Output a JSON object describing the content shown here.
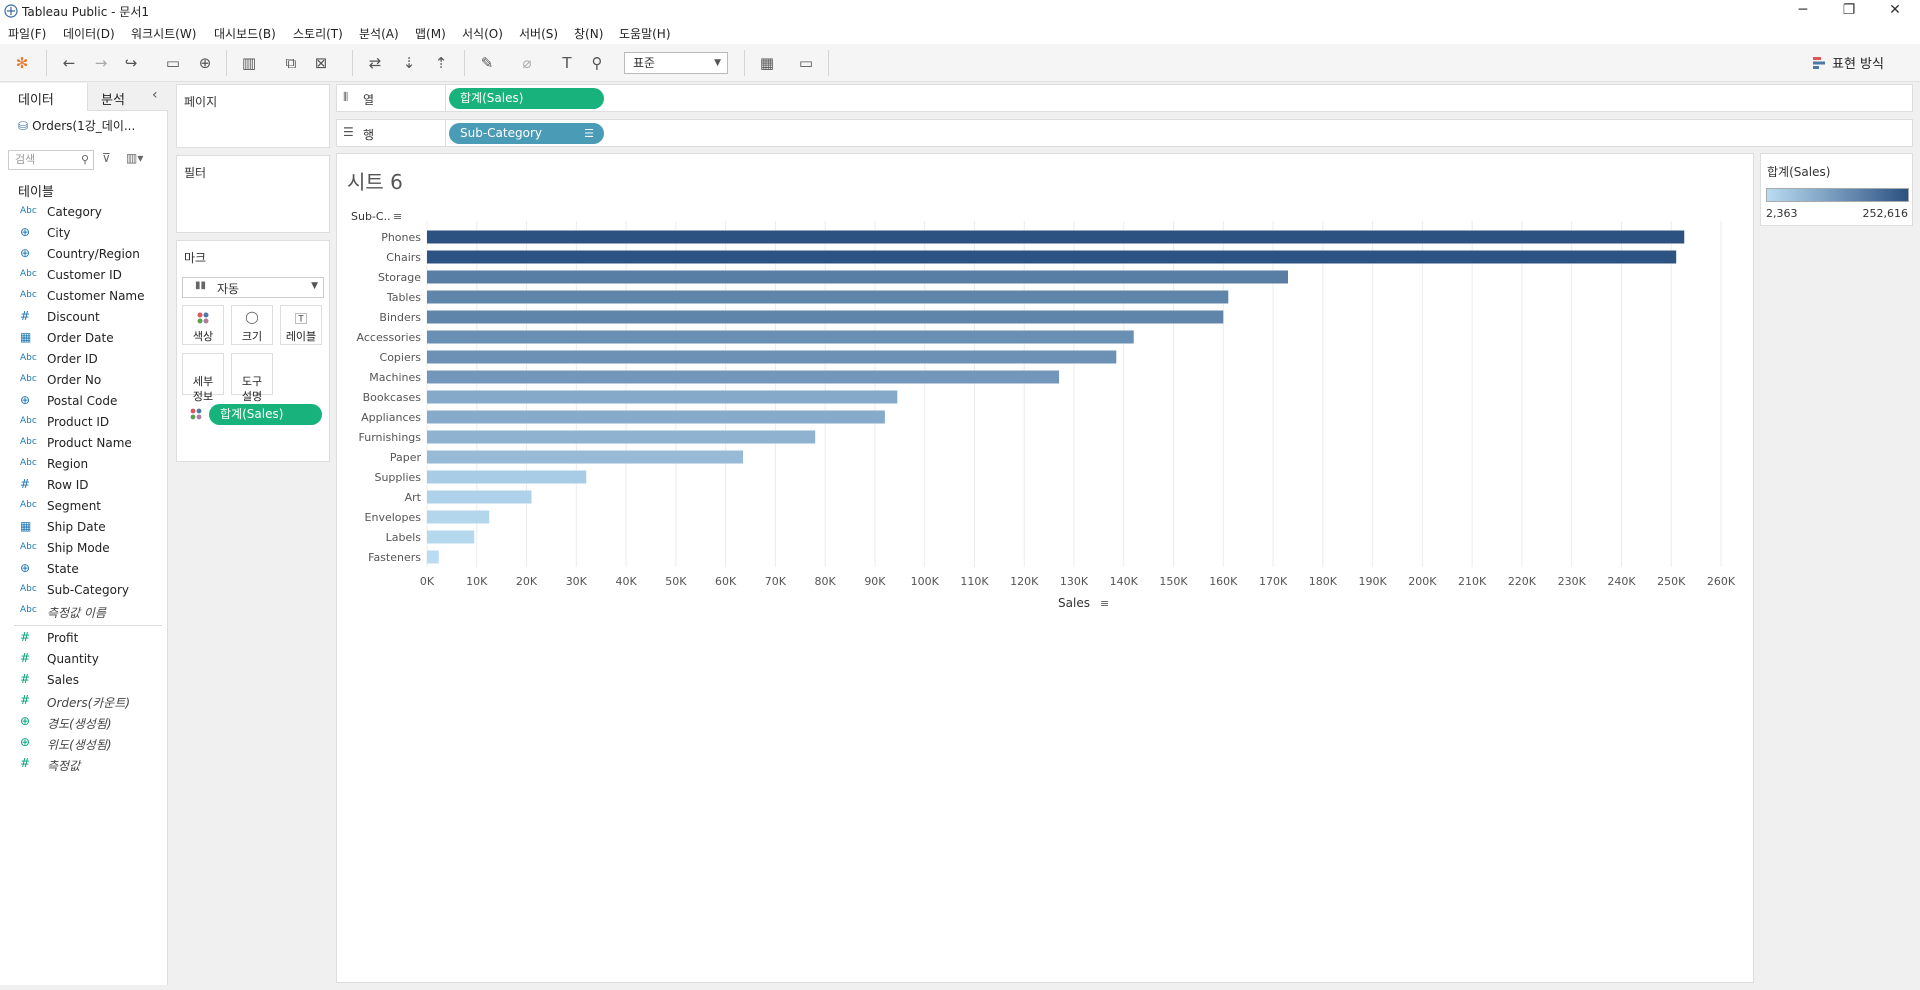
{
  "window": {
    "title": "Tableau Public - 문서1"
  },
  "menu": [
    "파일(F)",
    "데이터(D)",
    "워크시트(W)",
    "대시보드(B)",
    "스토리(T)",
    "분석(A)",
    "맵(M)",
    "서식(O)",
    "서버(S)",
    "창(N)",
    "도움말(H)"
  ],
  "toolbar": {
    "format_select": "표준",
    "show_me_label": "표현 방식"
  },
  "data_pane": {
    "tab_data": "데이터",
    "tab_analysis": "분석",
    "datasource": "Orders(1강_데이...",
    "search_placeholder": "검색",
    "tables_header": "테이블",
    "dimensions": [
      {
        "icon": "Abc",
        "name": "Category"
      },
      {
        "icon": "globe",
        "name": "City"
      },
      {
        "icon": "globe",
        "name": "Country/Region"
      },
      {
        "icon": "Abc",
        "name": "Customer ID"
      },
      {
        "icon": "Abc",
        "name": "Customer Name"
      },
      {
        "icon": "#",
        "name": "Discount"
      },
      {
        "icon": "date",
        "name": "Order Date"
      },
      {
        "icon": "Abc",
        "name": "Order ID"
      },
      {
        "icon": "Abc",
        "name": "Order No"
      },
      {
        "icon": "globe",
        "name": "Postal Code"
      },
      {
        "icon": "Abc",
        "name": "Product ID"
      },
      {
        "icon": "Abc",
        "name": "Product Name"
      },
      {
        "icon": "Abc",
        "name": "Region"
      },
      {
        "icon": "#",
        "name": "Row ID"
      },
      {
        "icon": "Abc",
        "name": "Segment"
      },
      {
        "icon": "date",
        "name": "Ship Date"
      },
      {
        "icon": "Abc",
        "name": "Ship Mode"
      },
      {
        "icon": "globe",
        "name": "State"
      },
      {
        "icon": "Abc",
        "name": "Sub-Category"
      },
      {
        "icon": "Abc",
        "name": "측정값 이름",
        "italic": true
      }
    ],
    "measures": [
      {
        "icon": "#",
        "name": "Profit"
      },
      {
        "icon": "#",
        "name": "Quantity"
      },
      {
        "icon": "#",
        "name": "Sales"
      },
      {
        "icon": "#",
        "name": "Orders(카운트)",
        "italic": true
      },
      {
        "icon": "globe",
        "name": "경도(생성됨)",
        "italic": true
      },
      {
        "icon": "globe",
        "name": "위도(생성됨)",
        "italic": true
      },
      {
        "icon": "#",
        "name": "측정값",
        "italic": true
      }
    ]
  },
  "cards": {
    "pages": "페이지",
    "filters": "필터",
    "marks": "마크",
    "mark_type": "자동",
    "mark_buttons": {
      "color": "색상",
      "size": "크기",
      "label": "레이블",
      "detail": "세부\n정보",
      "tooltip": "도구\n설명"
    },
    "marks_pill": "합계(Sales)"
  },
  "shelves": {
    "columns_label": "열",
    "rows_label": "행",
    "columns_pill": "합계(Sales)",
    "rows_pill": "Sub-Category"
  },
  "sheet": {
    "title": "시트 6"
  },
  "legend": {
    "title": "합계(Sales)",
    "min_label": "2,363",
    "max_label": "252,616"
  },
  "chart_data": {
    "type": "bar",
    "orientation": "horizontal",
    "row_header": "Sub-C..",
    "xlabel": "Sales",
    "categories": [
      "Phones",
      "Chairs",
      "Storage",
      "Tables",
      "Binders",
      "Accessories",
      "Copiers",
      "Machines",
      "Bookcases",
      "Appliances",
      "Furnishings",
      "Paper",
      "Supplies",
      "Art",
      "Envelopes",
      "Labels",
      "Fasteners"
    ],
    "values": [
      252616,
      251000,
      173000,
      161000,
      160000,
      142000,
      138500,
      127000,
      94500,
      92000,
      78000,
      63500,
      32000,
      21000,
      12500,
      9500,
      2363
    ],
    "xlim": [
      0,
      260000
    ],
    "xticks": [
      "0K",
      "10K",
      "20K",
      "30K",
      "40K",
      "50K",
      "60K",
      "70K",
      "80K",
      "90K",
      "100K",
      "110K",
      "120K",
      "130K",
      "140K",
      "150K",
      "160K",
      "170K",
      "180K",
      "190K",
      "200K",
      "210K",
      "220K",
      "230K",
      "240K",
      "250K",
      "260K"
    ],
    "color_range": [
      "#b9dcf2",
      "#2c5282"
    ],
    "grid": "vertical"
  }
}
